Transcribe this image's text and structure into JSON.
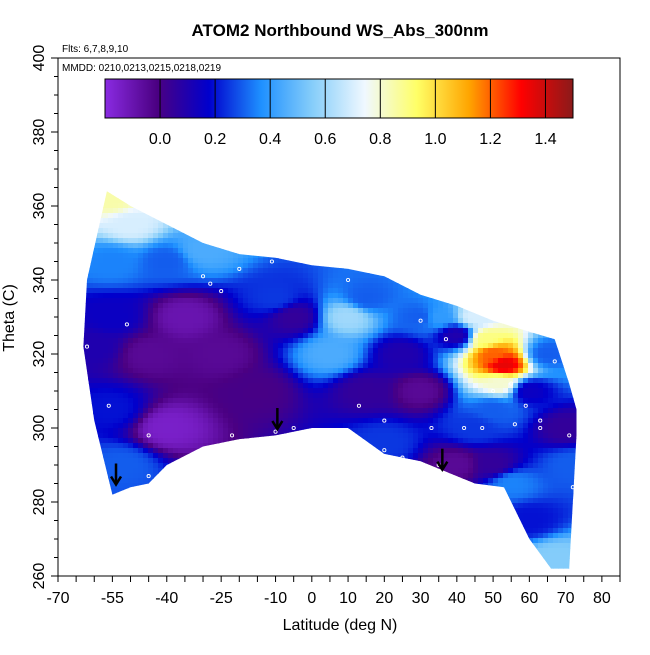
{
  "chart_data": {
    "type": "heatmap",
    "title": "ATOM2 Northbound WS_Abs_300nm",
    "annotations": {
      "flights": "Flts: 6,7,8,9,10",
      "dates": "MMDD: 0210,0213,0215,0218,0219"
    },
    "xlabel": "Latitude (deg N)",
    "ylabel": "Theta (C)",
    "xlim": [
      -70,
      85
    ],
    "ylim": [
      260,
      400
    ],
    "x_ticks": [
      -70,
      -55,
      -40,
      -25,
      -10,
      0,
      10,
      20,
      30,
      40,
      50,
      60,
      70,
      80
    ],
    "x_tick_labels": [
      "-70",
      "-55",
      "-40",
      "-25",
      "-10",
      "0",
      "10",
      "20",
      "30",
      "40",
      "50",
      "60",
      "70",
      "80"
    ],
    "y_ticks": [
      260,
      280,
      300,
      320,
      340,
      360,
      380,
      400
    ],
    "y_tick_labels": [
      "260",
      "280",
      "300",
      "320",
      "340",
      "360",
      "380",
      "400"
    ],
    "colorbar": {
      "range": [
        -0.2,
        1.5
      ],
      "ticks": [
        0.0,
        0.2,
        0.4,
        0.6,
        0.8,
        1.0,
        1.2,
        1.4
      ],
      "tick_labels": [
        "0.0",
        "0.2",
        "0.4",
        "0.6",
        "0.8",
        "1.0",
        "1.2",
        "1.4"
      ],
      "colors": [
        "#8a2be2",
        "#4b0082",
        "#0000cd",
        "#1e90ff",
        "#87cefa",
        "#f0f8ff",
        "#ffff66",
        "#ffa500",
        "#ff0000",
        "#8b1a1a"
      ]
    },
    "domain_top": [
      [
        -56.5,
        364
      ],
      [
        -50,
        360
      ],
      [
        -40,
        355
      ],
      [
        -30,
        350
      ],
      [
        -20,
        347
      ],
      [
        -10,
        346
      ],
      [
        0,
        344
      ],
      [
        10,
        343
      ],
      [
        20,
        341
      ],
      [
        30,
        336
      ],
      [
        40,
        333
      ],
      [
        50,
        329
      ],
      [
        60,
        326
      ],
      [
        67,
        324
      ],
      [
        71,
        312
      ],
      [
        73,
        305
      ]
    ],
    "domain_bottom": [
      [
        73,
        298
      ],
      [
        71,
        262
      ],
      [
        66,
        262
      ],
      [
        60,
        270
      ],
      [
        53,
        284
      ],
      [
        45,
        285
      ],
      [
        40,
        287
      ],
      [
        30,
        291
      ],
      [
        20,
        293
      ],
      [
        10,
        300
      ],
      [
        0,
        300
      ],
      [
        -10,
        298
      ],
      [
        -20,
        297
      ],
      [
        -30,
        295
      ],
      [
        -40,
        290
      ],
      [
        -45,
        285
      ],
      [
        -50,
        284
      ],
      [
        -55,
        282
      ]
    ],
    "domain_left": [
      [
        -55,
        282
      ],
      [
        -60,
        302
      ],
      [
        -63,
        322
      ],
      [
        -62,
        340
      ],
      [
        -56.5,
        364
      ]
    ],
    "field_points": [
      {
        "lat": -60,
        "theta": 322,
        "value": 0.1
      },
      {
        "lat": -55,
        "theta": 362,
        "value": 0.85
      },
      {
        "lat": -50,
        "theta": 355,
        "value": 0.7
      },
      {
        "lat": -55,
        "theta": 345,
        "value": 0.35
      },
      {
        "lat": -55,
        "theta": 330,
        "value": 0.15
      },
      {
        "lat": -55,
        "theta": 305,
        "value": 0.2
      },
      {
        "lat": -52,
        "theta": 290,
        "value": 0.3
      },
      {
        "lat": -45,
        "theta": 320,
        "value": -0.05
      },
      {
        "lat": -40,
        "theta": 300,
        "value": -0.15
      },
      {
        "lat": -35,
        "theta": 330,
        "value": -0.1
      },
      {
        "lat": -40,
        "theta": 345,
        "value": 0.3
      },
      {
        "lat": -30,
        "theta": 348,
        "value": 0.45
      },
      {
        "lat": -25,
        "theta": 320,
        "value": -0.05
      },
      {
        "lat": -15,
        "theta": 310,
        "value": 0.0
      },
      {
        "lat": -10,
        "theta": 335,
        "value": 0.25
      },
      {
        "lat": -5,
        "theta": 330,
        "value": 0.05
      },
      {
        "lat": 5,
        "theta": 320,
        "value": 0.45
      },
      {
        "lat": 10,
        "theta": 330,
        "value": 0.6
      },
      {
        "lat": 15,
        "theta": 335,
        "value": 0.3
      },
      {
        "lat": 15,
        "theta": 310,
        "value": 0.05
      },
      {
        "lat": 25,
        "theta": 320,
        "value": 0.1
      },
      {
        "lat": 30,
        "theta": 310,
        "value": -0.05
      },
      {
        "lat": 30,
        "theta": 330,
        "value": 0.3
      },
      {
        "lat": 35,
        "theta": 330,
        "value": 0.4
      },
      {
        "lat": 40,
        "theta": 325,
        "value": 0.1
      },
      {
        "lat": 45,
        "theta": 330,
        "value": 0.7
      },
      {
        "lat": 48,
        "theta": 324,
        "value": 0.9
      },
      {
        "lat": 50,
        "theta": 320,
        "value": 1.2
      },
      {
        "lat": 53,
        "theta": 317,
        "value": 1.35
      },
      {
        "lat": 52,
        "theta": 312,
        "value": 0.8
      },
      {
        "lat": 50,
        "theta": 305,
        "value": 0.3
      },
      {
        "lat": 45,
        "theta": 300,
        "value": 0.25
      },
      {
        "lat": 40,
        "theta": 290,
        "value": -0.05
      },
      {
        "lat": 50,
        "theta": 290,
        "value": 0.05
      },
      {
        "lat": 55,
        "theta": 285,
        "value": 0.35
      },
      {
        "lat": 60,
        "theta": 275,
        "value": 0.2
      },
      {
        "lat": 67,
        "theta": 265,
        "value": 0.55
      },
      {
        "lat": 60,
        "theta": 310,
        "value": 0.15
      },
      {
        "lat": 65,
        "theta": 320,
        "value": 0.3
      },
      {
        "lat": 70,
        "theta": 300,
        "value": 0.05
      },
      {
        "lat": 72,
        "theta": 290,
        "value": 0.3
      },
      {
        "lat": 20,
        "theta": 296,
        "value": 0.25
      }
    ],
    "flight_markers": [
      {
        "lat": -51,
        "theta": 328
      },
      {
        "lat": -45,
        "theta": 298
      },
      {
        "lat": -45,
        "theta": 287
      },
      {
        "lat": -30,
        "theta": 341
      },
      {
        "lat": -28,
        "theta": 339
      },
      {
        "lat": -25,
        "theta": 337
      },
      {
        "lat": -20,
        "theta": 343
      },
      {
        "lat": -11,
        "theta": 345
      },
      {
        "lat": -22,
        "theta": 298
      },
      {
        "lat": -10,
        "theta": 299
      },
      {
        "lat": -5,
        "theta": 300
      },
      {
        "lat": 10,
        "theta": 340
      },
      {
        "lat": 13,
        "theta": 306
      },
      {
        "lat": 20,
        "theta": 302
      },
      {
        "lat": 20,
        "theta": 294
      },
      {
        "lat": 25,
        "theta": 292
      },
      {
        "lat": 30,
        "theta": 329
      },
      {
        "lat": 33,
        "theta": 300
      },
      {
        "lat": 35,
        "theta": 290
      },
      {
        "lat": 37,
        "theta": 324
      },
      {
        "lat": 42,
        "theta": 300
      },
      {
        "lat": 47,
        "theta": 300
      },
      {
        "lat": 50,
        "theta": 310
      },
      {
        "lat": 55,
        "theta": 312
      },
      {
        "lat": 56,
        "theta": 301
      },
      {
        "lat": 59,
        "theta": 306
      },
      {
        "lat": 63,
        "theta": 302
      },
      {
        "lat": 63,
        "theta": 300
      },
      {
        "lat": 67,
        "theta": 318
      },
      {
        "lat": 71,
        "theta": 298
      },
      {
        "lat": 72,
        "theta": 284
      },
      {
        "lat": -56,
        "theta": 306
      },
      {
        "lat": -62,
        "theta": 322
      }
    ],
    "arrows": [
      {
        "lat": -54,
        "theta": 285
      },
      {
        "lat": -9.5,
        "theta": 300
      },
      {
        "lat": 36,
        "theta": 289
      }
    ],
    "grid": false
  }
}
